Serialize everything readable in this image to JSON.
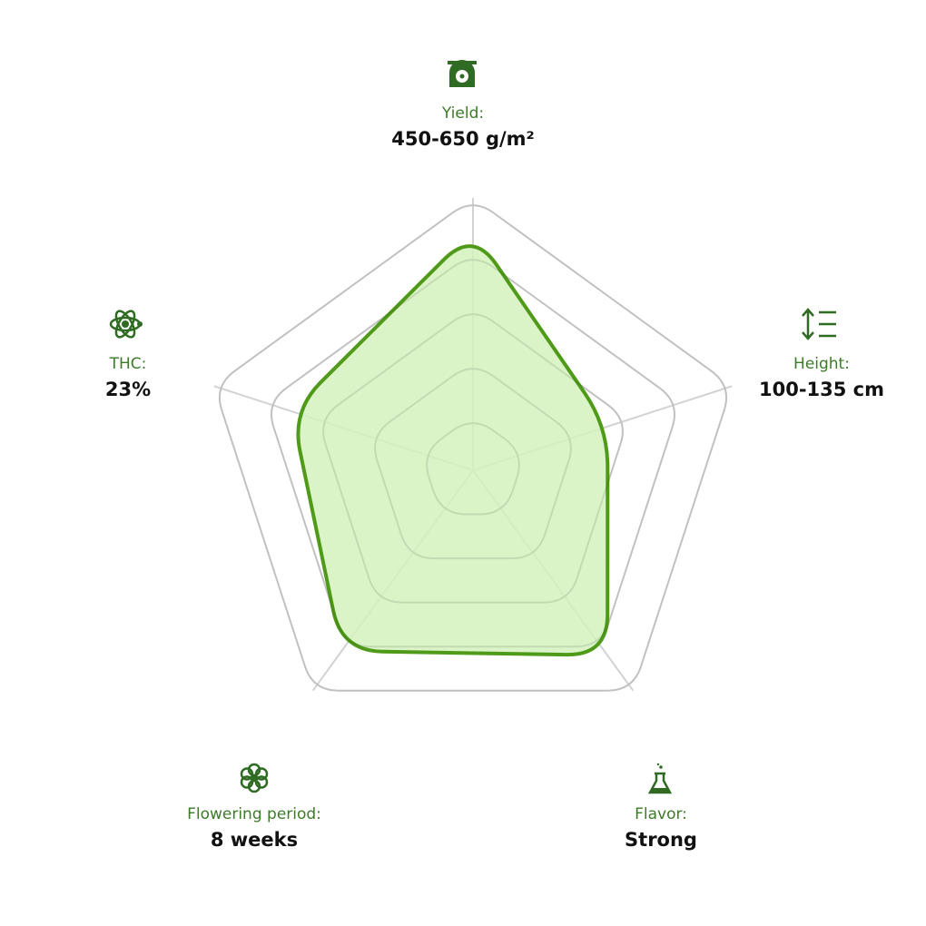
{
  "chart_data": {
    "type": "radar",
    "categories": [
      "Yield:",
      "Height:",
      "Flavor:",
      "Flowering period:",
      "THC:"
    ],
    "details": [
      "450-650 g/m²",
      "100-135 cm",
      "Strong",
      "8 weeks",
      "23%"
    ],
    "series": [
      {
        "color": "#4f9a18",
        "fill": "#d3f2be",
        "values": [
          4.4,
          2.6,
          4.2,
          4.1,
          3.5
        ]
      }
    ],
    "ylim": [
      0,
      5
    ],
    "yticks": [
      1,
      2,
      3,
      4,
      5
    ],
    "grid": true,
    "grid_color": "#d2d2d2"
  }
}
